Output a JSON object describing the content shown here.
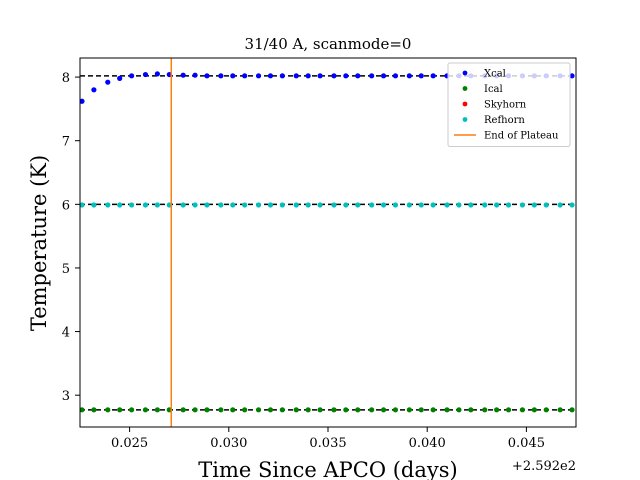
{
  "chart_data": {
    "type": "scatter",
    "title": "31/40 A, scanmode=0",
    "xlabel": "Time Since APCO (days)",
    "ylabel": "Temperature (K)",
    "x_offset_label": "+2.592e2",
    "xlim": [
      0.0225,
      0.0475
    ],
    "ylim": [
      2.5,
      8.3
    ],
    "xticks": [
      0.025,
      0.03,
      0.035,
      0.04,
      0.045
    ],
    "xtick_labels": [
      "0.025",
      "0.030",
      "0.035",
      "0.040",
      "0.045"
    ],
    "yticks": [
      3,
      4,
      5,
      6,
      7,
      8
    ],
    "ytick_labels": [
      "3",
      "4",
      "5",
      "6",
      "7",
      "8"
    ],
    "grid": false,
    "legend_position": "top-right",
    "hlines": [
      {
        "y": 8.02,
        "style": "dashed",
        "color": "#000000"
      },
      {
        "y": 6.0,
        "style": "dashed",
        "color": "#000000"
      },
      {
        "y": 2.77,
        "style": "dashed",
        "color": "#000000"
      }
    ],
    "vlines": [
      {
        "x": 0.0271,
        "color": "#ff7f0e",
        "series": "End of Plateau"
      }
    ],
    "series": [
      {
        "name": "Xcal",
        "color": "#0000ff",
        "x": [
          0.0226,
          0.0232,
          0.0239,
          0.0245,
          0.0251,
          0.0258,
          0.0264,
          0.027,
          0.0277,
          0.0283,
          0.0289,
          0.0296,
          0.0302,
          0.0308,
          0.0315,
          0.0321,
          0.0327,
          0.0334,
          0.034,
          0.0346,
          0.0353,
          0.0359,
          0.0365,
          0.0372,
          0.0378,
          0.0384,
          0.0391,
          0.0397,
          0.0403,
          0.041,
          0.0416,
          0.0422,
          0.0429,
          0.0435,
          0.0441,
          0.0448,
          0.0454,
          0.046,
          0.0467,
          0.0473
        ],
        "values": [
          7.62,
          7.8,
          7.92,
          7.98,
          8.02,
          8.04,
          8.05,
          8.04,
          8.03,
          8.03,
          8.02,
          8.02,
          8.02,
          8.02,
          8.02,
          8.02,
          8.02,
          8.02,
          8.02,
          8.02,
          8.02,
          8.02,
          8.02,
          8.02,
          8.02,
          8.02,
          8.02,
          8.02,
          8.02,
          8.02,
          8.02,
          8.02,
          8.02,
          8.02,
          8.02,
          8.02,
          8.02,
          8.02,
          8.02,
          8.02
        ]
      },
      {
        "name": "Ical",
        "color": "#008000",
        "x": [
          0.0226,
          0.0232,
          0.0239,
          0.0245,
          0.0251,
          0.0258,
          0.0264,
          0.027,
          0.0277,
          0.0283,
          0.0289,
          0.0296,
          0.0302,
          0.0308,
          0.0315,
          0.0321,
          0.0327,
          0.0334,
          0.034,
          0.0346,
          0.0353,
          0.0359,
          0.0365,
          0.0372,
          0.0378,
          0.0384,
          0.0391,
          0.0397,
          0.0403,
          0.041,
          0.0416,
          0.0422,
          0.0429,
          0.0435,
          0.0441,
          0.0448,
          0.0454,
          0.046,
          0.0467,
          0.0473
        ],
        "values": [
          2.77,
          2.77,
          2.77,
          2.77,
          2.77,
          2.77,
          2.77,
          2.77,
          2.77,
          2.77,
          2.77,
          2.77,
          2.77,
          2.77,
          2.77,
          2.77,
          2.77,
          2.77,
          2.77,
          2.77,
          2.77,
          2.77,
          2.77,
          2.77,
          2.77,
          2.77,
          2.77,
          2.77,
          2.77,
          2.77,
          2.77,
          2.77,
          2.77,
          2.77,
          2.77,
          2.77,
          2.77,
          2.77,
          2.77,
          2.77
        ]
      },
      {
        "name": "Skyhorn",
        "color": "#ff0000",
        "x": [],
        "values": []
      },
      {
        "name": "Refhorn",
        "color": "#00bfbf",
        "x": [
          0.0226,
          0.0232,
          0.0239,
          0.0245,
          0.0251,
          0.0258,
          0.0264,
          0.027,
          0.0277,
          0.0283,
          0.0289,
          0.0296,
          0.0302,
          0.0308,
          0.0315,
          0.0321,
          0.0327,
          0.0334,
          0.034,
          0.0346,
          0.0353,
          0.0359,
          0.0365,
          0.0372,
          0.0378,
          0.0384,
          0.0391,
          0.0397,
          0.0403,
          0.041,
          0.0416,
          0.0422,
          0.0429,
          0.0435,
          0.0441,
          0.0448,
          0.0454,
          0.046,
          0.0467,
          0.0473
        ],
        "values": [
          5.99,
          5.99,
          5.99,
          5.99,
          5.99,
          5.99,
          5.99,
          5.99,
          5.99,
          5.99,
          5.99,
          5.99,
          5.99,
          5.99,
          5.99,
          5.99,
          5.99,
          5.99,
          5.99,
          5.99,
          5.99,
          5.99,
          5.99,
          5.99,
          5.99,
          5.99,
          5.99,
          5.99,
          5.99,
          5.99,
          5.99,
          5.99,
          5.99,
          5.99,
          5.99,
          5.99,
          5.99,
          5.99,
          5.99,
          5.99
        ]
      }
    ],
    "legend": [
      {
        "label": "Xcal",
        "marker": "dot",
        "color": "#0000ff"
      },
      {
        "label": "Ical",
        "marker": "dot",
        "color": "#008000"
      },
      {
        "label": "Skyhorn",
        "marker": "dot",
        "color": "#ff0000"
      },
      {
        "label": "Refhorn",
        "marker": "dot",
        "color": "#00bfbf"
      },
      {
        "label": "End of Plateau",
        "marker": "line",
        "color": "#ff7f0e"
      }
    ]
  }
}
